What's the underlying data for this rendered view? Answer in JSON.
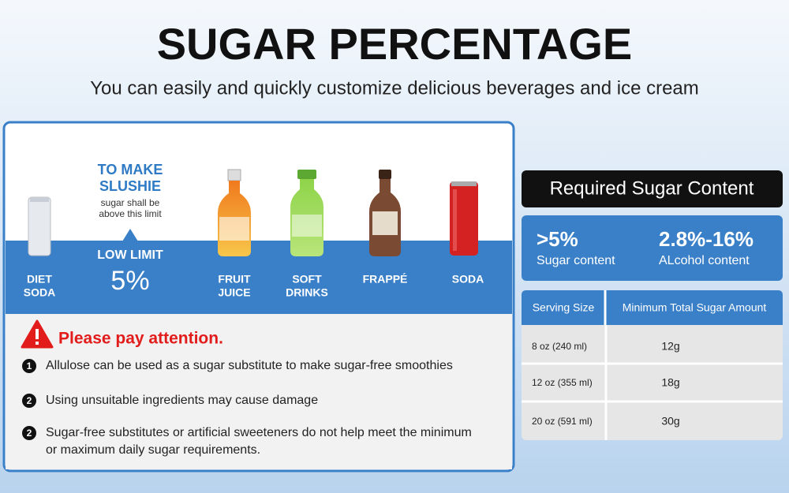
{
  "header": {
    "title": "SUGAR PERCENTAGE",
    "subtitle": "You can easily and quickly customize delicious beverages and ice cream"
  },
  "beverages": [
    {
      "label": [
        "DIET",
        "SODA"
      ]
    },
    {
      "label": [
        "FRUIT",
        "JUICE"
      ]
    },
    {
      "label": [
        "SOFT",
        "DRINKS"
      ]
    },
    {
      "label": [
        "FRAPPÉ"
      ]
    },
    {
      "label": [
        "SODA"
      ]
    }
  ],
  "slushie": {
    "heading": [
      "TO MAKE",
      "SLUSHIE"
    ],
    "note": [
      "sugar shall be",
      "above this limit"
    ],
    "limit_label": "LOW LIMIT",
    "limit_value": "5%"
  },
  "attention": {
    "title": "Please pay attention.",
    "items": [
      {
        "marker": "1",
        "text": [
          "Allulose can be used as a sugar substitute to make sugar-free smoothies"
        ]
      },
      {
        "marker": "2",
        "text": [
          "Using unsuitable ingredients may cause damage"
        ]
      },
      {
        "marker": "2",
        "text": [
          "Sugar-free substitutes or artificial sweeteners do not help meet the minimum",
          "or maximum daily sugar requirements."
        ]
      }
    ]
  },
  "requirements": {
    "title": "Required Sugar Content",
    "stats": [
      {
        "value": ">5%",
        "label": "Sugar content"
      },
      {
        "value": "2.8%-16%",
        "label": "ALcohol content"
      }
    ],
    "table": {
      "columns": [
        "Serving Size",
        "Minimum Total Sugar Amount"
      ],
      "rows": [
        [
          "8 oz (240 ml)",
          "12g"
        ],
        [
          "12 oz (355 ml)",
          "18g"
        ],
        [
          "20 oz (591 ml)",
          "30g"
        ]
      ]
    }
  }
}
